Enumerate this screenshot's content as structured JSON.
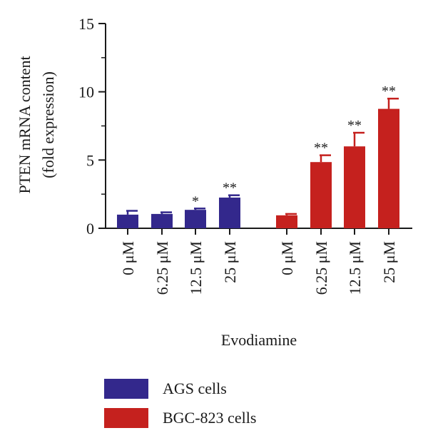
{
  "chart_data": {
    "type": "bar",
    "ylabel_line1": "PTEN mRNA content",
    "ylabel_line2": "(fold expression)",
    "xlabel": "Evodiamine",
    "ylim": [
      0,
      15
    ],
    "yticks": [
      0,
      5,
      10,
      15
    ],
    "categories": [
      "0 μM",
      "6.25 μM",
      "12.5 μM",
      "25 μM"
    ],
    "series": [
      {
        "name": "AGS cells",
        "color": "#33288c",
        "values": [
          1.0,
          1.05,
          1.35,
          2.25
        ],
        "errors": [
          0.28,
          0.12,
          0.1,
          0.17
        ],
        "significance": [
          "",
          "",
          "*",
          "**"
        ]
      },
      {
        "name": "BGC-823 cells",
        "color": "#c5211e",
        "values": [
          0.95,
          4.85,
          6.0,
          8.75
        ],
        "errors": [
          0.1,
          0.5,
          1.0,
          0.75
        ],
        "significance": [
          "",
          "**",
          "**",
          "**"
        ]
      }
    ],
    "legend_position": "bottom"
  }
}
